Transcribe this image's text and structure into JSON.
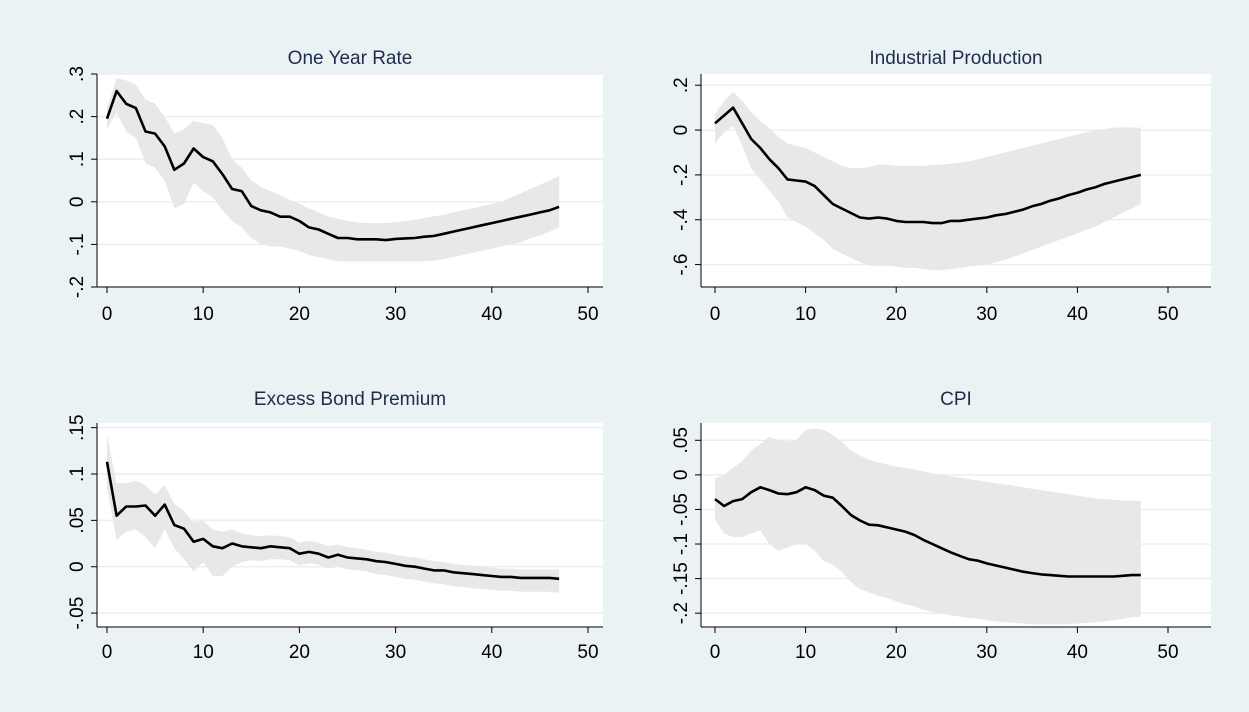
{
  "figure": {
    "background": "#eaf2f3",
    "plot_background": "#ffffff",
    "line_color": "#000000",
    "band_color": "#e8e8e8",
    "title_color": "#1e2d4e"
  },
  "chart_data": [
    {
      "type": "line",
      "title": "One Year Rate",
      "xlim": [
        0,
        50
      ],
      "ylim": [
        -0.2,
        0.3
      ],
      "xticks": [
        0,
        10,
        20,
        30,
        40,
        50
      ],
      "xtick_labels": [
        "0",
        "10",
        "20",
        "30",
        "40",
        "50"
      ],
      "yticks": [
        -0.2,
        -0.1,
        0,
        0.1,
        0.2,
        0.3
      ],
      "ytick_labels": [
        "-.2",
        "-.1",
        "0",
        ".1",
        ".2",
        ".3"
      ],
      "grid": true,
      "x": [
        0,
        1,
        2,
        3,
        4,
        5,
        6,
        7,
        8,
        9,
        10,
        11,
        12,
        13,
        14,
        15,
        16,
        17,
        18,
        19,
        20,
        21,
        22,
        23,
        24,
        25,
        26,
        27,
        28,
        29,
        30,
        31,
        32,
        33,
        34,
        35,
        36,
        37,
        38,
        39,
        40,
        41,
        42,
        43,
        44,
        45,
        46,
        47
      ],
      "series": [
        {
          "role": "estimate",
          "values": [
            0.195,
            0.26,
            0.23,
            0.22,
            0.165,
            0.16,
            0.13,
            0.075,
            0.09,
            0.125,
            0.105,
            0.095,
            0.065,
            0.03,
            0.025,
            -0.01,
            -0.02,
            -0.025,
            -0.035,
            -0.035,
            -0.045,
            -0.06,
            -0.065,
            -0.075,
            -0.085,
            -0.085,
            -0.088,
            -0.088,
            -0.088,
            -0.09,
            -0.087,
            -0.086,
            -0.085,
            -0.082,
            -0.08,
            -0.075,
            -0.07,
            -0.065,
            -0.06,
            -0.055,
            -0.05,
            -0.045,
            -0.04,
            -0.035,
            -0.03,
            -0.025,
            -0.02,
            -0.012
          ]
        },
        {
          "role": "upper",
          "values": [
            0.22,
            0.29,
            0.285,
            0.275,
            0.24,
            0.23,
            0.2,
            0.16,
            0.17,
            0.19,
            0.185,
            0.18,
            0.15,
            0.1,
            0.08,
            0.05,
            0.035,
            0.025,
            0.015,
            0.005,
            -0.005,
            -0.015,
            -0.025,
            -0.035,
            -0.04,
            -0.045,
            -0.048,
            -0.05,
            -0.05,
            -0.05,
            -0.048,
            -0.045,
            -0.042,
            -0.038,
            -0.034,
            -0.03,
            -0.025,
            -0.02,
            -0.015,
            -0.01,
            -0.005,
            0.0,
            0.01,
            0.02,
            0.03,
            0.04,
            0.05,
            0.06
          ]
        },
        {
          "role": "lower",
          "values": [
            0.17,
            0.21,
            0.165,
            0.15,
            0.09,
            0.08,
            0.05,
            -0.015,
            -0.005,
            0.045,
            0.025,
            0.01,
            -0.02,
            -0.045,
            -0.06,
            -0.085,
            -0.1,
            -0.105,
            -0.105,
            -0.11,
            -0.115,
            -0.125,
            -0.13,
            -0.135,
            -0.14,
            -0.14,
            -0.14,
            -0.14,
            -0.14,
            -0.14,
            -0.14,
            -0.14,
            -0.14,
            -0.14,
            -0.138,
            -0.135,
            -0.13,
            -0.125,
            -0.12,
            -0.115,
            -0.11,
            -0.105,
            -0.1,
            -0.095,
            -0.085,
            -0.08,
            -0.07,
            -0.06
          ]
        }
      ]
    },
    {
      "type": "line",
      "title": "Industrial Production",
      "xlim": [
        0,
        50
      ],
      "ylim": [
        -0.7,
        0.25
      ],
      "xticks": [
        0,
        10,
        20,
        30,
        40,
        50
      ],
      "xtick_labels": [
        "0",
        "10",
        "20",
        "30",
        "40",
        "50"
      ],
      "yticks": [
        -0.6,
        -0.4,
        -0.2,
        0,
        0.2
      ],
      "ytick_labels": [
        "-.6",
        "-.4",
        "-.2",
        "0",
        ".2"
      ],
      "grid": true,
      "x": [
        0,
        1,
        2,
        3,
        4,
        5,
        6,
        7,
        8,
        9,
        10,
        11,
        12,
        13,
        14,
        15,
        16,
        17,
        18,
        19,
        20,
        21,
        22,
        23,
        24,
        25,
        26,
        27,
        28,
        29,
        30,
        31,
        32,
        33,
        34,
        35,
        36,
        37,
        38,
        39,
        40,
        41,
        42,
        43,
        44,
        45,
        46,
        47
      ],
      "series": [
        {
          "role": "estimate",
          "values": [
            0.03,
            0.065,
            0.1,
            0.03,
            -0.04,
            -0.08,
            -0.13,
            -0.17,
            -0.22,
            -0.225,
            -0.23,
            -0.25,
            -0.29,
            -0.33,
            -0.35,
            -0.37,
            -0.39,
            -0.395,
            -0.39,
            -0.395,
            -0.405,
            -0.41,
            -0.41,
            -0.41,
            -0.415,
            -0.415,
            -0.405,
            -0.405,
            -0.4,
            -0.395,
            -0.39,
            -0.38,
            -0.375,
            -0.365,
            -0.355,
            -0.34,
            -0.33,
            -0.315,
            -0.305,
            -0.29,
            -0.28,
            -0.265,
            -0.255,
            -0.24,
            -0.23,
            -0.22,
            -0.21,
            -0.2
          ]
        },
        {
          "role": "upper",
          "values": [
            0.07,
            0.13,
            0.17,
            0.13,
            0.08,
            0.04,
            0.01,
            -0.03,
            -0.06,
            -0.07,
            -0.08,
            -0.1,
            -0.12,
            -0.14,
            -0.16,
            -0.17,
            -0.17,
            -0.165,
            -0.155,
            -0.155,
            -0.16,
            -0.16,
            -0.16,
            -0.16,
            -0.155,
            -0.155,
            -0.15,
            -0.145,
            -0.14,
            -0.13,
            -0.12,
            -0.11,
            -0.1,
            -0.09,
            -0.08,
            -0.07,
            -0.06,
            -0.05,
            -0.04,
            -0.03,
            -0.02,
            -0.01,
            0.0,
            0.005,
            0.01,
            0.012,
            0.012,
            0.01
          ]
        },
        {
          "role": "lower",
          "values": [
            -0.06,
            -0.01,
            0.02,
            -0.07,
            -0.17,
            -0.22,
            -0.27,
            -0.32,
            -0.39,
            -0.41,
            -0.43,
            -0.46,
            -0.49,
            -0.53,
            -0.55,
            -0.57,
            -0.59,
            -0.605,
            -0.605,
            -0.605,
            -0.61,
            -0.615,
            -0.615,
            -0.62,
            -0.625,
            -0.625,
            -0.62,
            -0.615,
            -0.61,
            -0.605,
            -0.6,
            -0.59,
            -0.58,
            -0.565,
            -0.55,
            -0.535,
            -0.52,
            -0.505,
            -0.49,
            -0.475,
            -0.46,
            -0.445,
            -0.43,
            -0.41,
            -0.39,
            -0.37,
            -0.35,
            -0.33
          ]
        }
      ]
    },
    {
      "type": "line",
      "title": "Excess Bond Premium",
      "xlim": [
        0,
        50
      ],
      "ylim": [
        -0.065,
        0.155
      ],
      "xticks": [
        0,
        10,
        20,
        30,
        40,
        50
      ],
      "xtick_labels": [
        "0",
        "10",
        "20",
        "30",
        "40",
        "50"
      ],
      "yticks": [
        -0.05,
        0,
        0.05,
        0.1,
        0.15
      ],
      "ytick_labels": [
        "-.05",
        "0",
        ".05",
        ".1",
        ".15"
      ],
      "grid": true,
      "x": [
        0,
        1,
        2,
        3,
        4,
        5,
        6,
        7,
        8,
        9,
        10,
        11,
        12,
        13,
        14,
        15,
        16,
        17,
        18,
        19,
        20,
        21,
        22,
        23,
        24,
        25,
        26,
        27,
        28,
        29,
        30,
        31,
        32,
        33,
        34,
        35,
        36,
        37,
        38,
        39,
        40,
        41,
        42,
        43,
        44,
        45,
        46,
        47
      ],
      "series": [
        {
          "role": "estimate",
          "values": [
            0.113,
            0.055,
            0.065,
            0.065,
            0.066,
            0.055,
            0.067,
            0.045,
            0.041,
            0.027,
            0.03,
            0.022,
            0.02,
            0.025,
            0.022,
            0.021,
            0.02,
            0.022,
            0.021,
            0.02,
            0.014,
            0.016,
            0.014,
            0.01,
            0.013,
            0.01,
            0.009,
            0.008,
            0.006,
            0.005,
            0.003,
            0.001,
            0.0,
            -0.002,
            -0.004,
            -0.004,
            -0.006,
            -0.007,
            -0.008,
            -0.009,
            -0.01,
            -0.011,
            -0.011,
            -0.012,
            -0.012,
            -0.012,
            -0.012,
            -0.013
          ]
        },
        {
          "role": "upper",
          "values": [
            0.142,
            0.09,
            0.09,
            0.093,
            0.088,
            0.078,
            0.088,
            0.068,
            0.06,
            0.048,
            0.05,
            0.04,
            0.038,
            0.04,
            0.036,
            0.034,
            0.033,
            0.034,
            0.033,
            0.032,
            0.026,
            0.028,
            0.026,
            0.022,
            0.024,
            0.021,
            0.02,
            0.018,
            0.016,
            0.015,
            0.013,
            0.011,
            0.01,
            0.008,
            0.006,
            0.005,
            0.003,
            0.002,
            0.001,
            0.0,
            -0.001,
            -0.002,
            -0.002,
            -0.003,
            -0.003,
            -0.003,
            -0.003,
            -0.003
          ]
        },
        {
          "role": "lower",
          "values": [
            0.085,
            0.028,
            0.038,
            0.04,
            0.032,
            0.02,
            0.04,
            0.02,
            0.008,
            -0.005,
            0.005,
            -0.01,
            -0.01,
            0.0,
            0.005,
            0.007,
            0.006,
            0.008,
            0.008,
            0.007,
            0.001,
            0.004,
            0.002,
            -0.002,
            0.0,
            -0.003,
            -0.004,
            -0.005,
            -0.008,
            -0.009,
            -0.011,
            -0.013,
            -0.014,
            -0.016,
            -0.018,
            -0.019,
            -0.021,
            -0.022,
            -0.023,
            -0.024,
            -0.025,
            -0.026,
            -0.026,
            -0.027,
            -0.027,
            -0.027,
            -0.027,
            -0.028
          ]
        }
      ]
    },
    {
      "type": "line",
      "title": "CPI",
      "xlim": [
        0,
        50
      ],
      "ylim": [
        -0.22,
        0.075
      ],
      "xticks": [
        0,
        10,
        20,
        30,
        40,
        50
      ],
      "xtick_labels": [
        "0",
        "10",
        "20",
        "30",
        "40",
        "50"
      ],
      "yticks": [
        -0.2,
        -0.15,
        -0.1,
        -0.05,
        0,
        0.05
      ],
      "ytick_labels": [
        "-.2",
        "-.15",
        "-.1",
        "-.05",
        "0",
        ".05"
      ],
      "grid": true,
      "x": [
        0,
        1,
        2,
        3,
        4,
        5,
        6,
        7,
        8,
        9,
        10,
        11,
        12,
        13,
        14,
        15,
        16,
        17,
        18,
        19,
        20,
        21,
        22,
        23,
        24,
        25,
        26,
        27,
        28,
        29,
        30,
        31,
        32,
        33,
        34,
        35,
        36,
        37,
        38,
        39,
        40,
        41,
        42,
        43,
        44,
        45,
        46,
        47
      ],
      "series": [
        {
          "role": "estimate",
          "values": [
            -0.035,
            -0.045,
            -0.038,
            -0.035,
            -0.025,
            -0.018,
            -0.022,
            -0.027,
            -0.028,
            -0.025,
            -0.018,
            -0.022,
            -0.03,
            -0.033,
            -0.045,
            -0.058,
            -0.066,
            -0.072,
            -0.073,
            -0.076,
            -0.079,
            -0.082,
            -0.087,
            -0.094,
            -0.1,
            -0.106,
            -0.112,
            -0.117,
            -0.122,
            -0.124,
            -0.128,
            -0.131,
            -0.134,
            -0.137,
            -0.14,
            -0.142,
            -0.144,
            -0.145,
            -0.146,
            -0.147,
            -0.147,
            -0.147,
            -0.147,
            -0.147,
            -0.147,
            -0.146,
            -0.145,
            -0.145
          ]
        },
        {
          "role": "upper",
          "values": [
            -0.005,
            0.0,
            0.01,
            0.02,
            0.035,
            0.045,
            0.055,
            0.05,
            0.048,
            0.05,
            0.065,
            0.067,
            0.065,
            0.058,
            0.048,
            0.035,
            0.028,
            0.022,
            0.018,
            0.015,
            0.012,
            0.01,
            0.008,
            0.005,
            0.002,
            0.0,
            -0.002,
            -0.004,
            -0.006,
            -0.008,
            -0.01,
            -0.012,
            -0.014,
            -0.016,
            -0.018,
            -0.02,
            -0.022,
            -0.024,
            -0.026,
            -0.028,
            -0.03,
            -0.032,
            -0.034,
            -0.035,
            -0.036,
            -0.037,
            -0.037,
            -0.038
          ]
        },
        {
          "role": "lower",
          "values": [
            -0.065,
            -0.085,
            -0.09,
            -0.09,
            -0.085,
            -0.08,
            -0.1,
            -0.11,
            -0.105,
            -0.1,
            -0.1,
            -0.11,
            -0.125,
            -0.13,
            -0.14,
            -0.155,
            -0.165,
            -0.17,
            -0.175,
            -0.178,
            -0.183,
            -0.187,
            -0.19,
            -0.195,
            -0.198,
            -0.2,
            -0.203,
            -0.205,
            -0.207,
            -0.208,
            -0.21,
            -0.212,
            -0.213,
            -0.214,
            -0.215,
            -0.216,
            -0.216,
            -0.216,
            -0.216,
            -0.216,
            -0.215,
            -0.214,
            -0.213,
            -0.212,
            -0.21,
            -0.208,
            -0.206,
            -0.205
          ]
        }
      ]
    }
  ]
}
